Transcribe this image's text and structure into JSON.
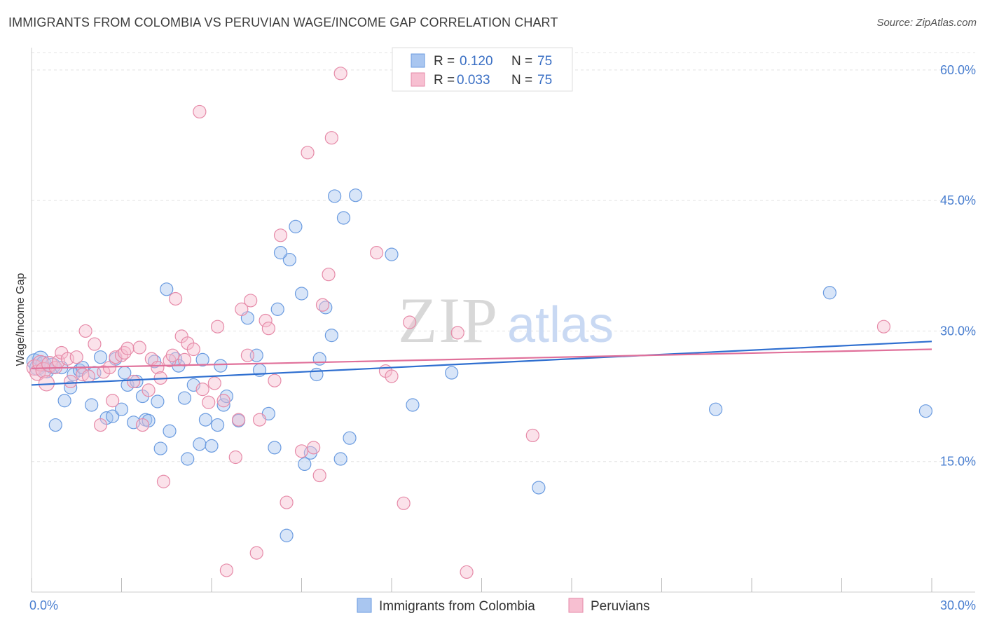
{
  "chart_data": {
    "type": "scatter",
    "title": "IMMIGRANTS FROM COLOMBIA VS PERUVIAN WAGE/INCOME GAP CORRELATION CHART",
    "source": "Source: ZipAtlas.com",
    "xlabel": "",
    "ylabel": "Wage/Income Gap",
    "xlim": [
      0,
      30
    ],
    "ylim": [
      0,
      62
    ],
    "x_tick_labels": [
      "0.0%",
      "30.0%"
    ],
    "y_ticks": [
      15,
      30,
      45,
      60
    ],
    "y_tick_labels": [
      "15.0%",
      "30.0%",
      "45.0%",
      "60.0%"
    ],
    "grid": true,
    "watermark": "ZIPatlas",
    "legend_stats": [
      {
        "r_label": "R =",
        "r_value": "0.120",
        "n_label": "N =",
        "n_value": "75"
      },
      {
        "r_label": "R =",
        "r_value": "0.033",
        "n_label": "N =",
        "n_value": "75"
      }
    ],
    "series": [
      {
        "name": "Immigrants from Colombia",
        "color": "#6a9be0",
        "fill": "#a9c6f0",
        "trend": {
          "x": [
            0,
            30
          ],
          "y": [
            23.8,
            28.8
          ]
        },
        "points": [
          [
            0.1,
            26.5
          ],
          [
            0.2,
            25.8
          ],
          [
            0.3,
            26.8
          ],
          [
            0.4,
            26.2
          ],
          [
            0.5,
            25.5
          ],
          [
            0.7,
            26.0
          ],
          [
            0.8,
            19.2
          ],
          [
            1.0,
            25.8
          ],
          [
            1.1,
            22.0
          ],
          [
            1.3,
            23.5
          ],
          [
            1.4,
            25.0
          ],
          [
            1.6,
            25.5
          ],
          [
            1.7,
            25.8
          ],
          [
            2.0,
            21.5
          ],
          [
            2.1,
            25.2
          ],
          [
            2.3,
            27.0
          ],
          [
            2.5,
            20.0
          ],
          [
            2.7,
            20.2
          ],
          [
            2.8,
            26.8
          ],
          [
            3.0,
            21.0
          ],
          [
            3.1,
            25.2
          ],
          [
            3.2,
            23.8
          ],
          [
            3.4,
            19.5
          ],
          [
            3.5,
            24.2
          ],
          [
            3.7,
            22.5
          ],
          [
            3.8,
            19.8
          ],
          [
            3.9,
            19.7
          ],
          [
            4.1,
            26.5
          ],
          [
            4.2,
            21.9
          ],
          [
            4.3,
            16.5
          ],
          [
            4.5,
            34.8
          ],
          [
            4.6,
            18.5
          ],
          [
            4.8,
            26.8
          ],
          [
            4.9,
            26.0
          ],
          [
            5.1,
            22.3
          ],
          [
            5.2,
            15.3
          ],
          [
            5.4,
            23.8
          ],
          [
            5.6,
            17.0
          ],
          [
            5.7,
            26.7
          ],
          [
            5.8,
            19.8
          ],
          [
            6.0,
            16.8
          ],
          [
            6.2,
            19.2
          ],
          [
            6.3,
            26.0
          ],
          [
            6.4,
            21.5
          ],
          [
            6.5,
            22.5
          ],
          [
            6.9,
            19.7
          ],
          [
            7.2,
            31.5
          ],
          [
            7.5,
            27.2
          ],
          [
            7.6,
            25.5
          ],
          [
            7.9,
            20.5
          ],
          [
            8.1,
            16.6
          ],
          [
            8.2,
            32.5
          ],
          [
            8.5,
            6.5
          ],
          [
            8.6,
            38.2
          ],
          [
            8.3,
            39.0
          ],
          [
            8.8,
            42.0
          ],
          [
            9.0,
            34.3
          ],
          [
            9.1,
            14.7
          ],
          [
            9.3,
            16.0
          ],
          [
            9.5,
            25.0
          ],
          [
            9.6,
            26.8
          ],
          [
            9.8,
            32.7
          ],
          [
            10.0,
            29.5
          ],
          [
            10.1,
            45.5
          ],
          [
            10.3,
            15.3
          ],
          [
            10.4,
            43.0
          ],
          [
            10.6,
            17.7
          ],
          [
            10.8,
            45.6
          ],
          [
            12.0,
            38.8
          ],
          [
            12.7,
            21.5
          ],
          [
            14.0,
            25.2
          ],
          [
            16.9,
            12.0
          ],
          [
            22.8,
            21.0
          ],
          [
            26.6,
            34.4
          ],
          [
            29.8,
            20.8
          ]
        ]
      },
      {
        "name": "Peruvians",
        "color": "#e68aa8",
        "fill": "#f7bfd1",
        "trend": {
          "x": [
            0,
            30
          ],
          "y": [
            25.7,
            27.9
          ]
        },
        "points": [
          [
            0.1,
            25.8
          ],
          [
            0.2,
            25.2
          ],
          [
            0.3,
            26.3
          ],
          [
            0.4,
            25.5
          ],
          [
            0.5,
            24.0
          ],
          [
            0.6,
            26.2
          ],
          [
            0.8,
            25.8
          ],
          [
            0.9,
            26.5
          ],
          [
            1.0,
            27.5
          ],
          [
            1.2,
            26.8
          ],
          [
            1.3,
            24.2
          ],
          [
            1.5,
            27.0
          ],
          [
            1.7,
            25.0
          ],
          [
            1.8,
            30.0
          ],
          [
            1.9,
            24.8
          ],
          [
            2.1,
            28.5
          ],
          [
            2.3,
            19.2
          ],
          [
            2.4,
            25.3
          ],
          [
            2.6,
            25.8
          ],
          [
            2.7,
            22.0
          ],
          [
            2.8,
            27.0
          ],
          [
            3.0,
            27.2
          ],
          [
            3.1,
            27.5
          ],
          [
            3.2,
            28.0
          ],
          [
            3.4,
            24.2
          ],
          [
            3.6,
            28.1
          ],
          [
            3.7,
            19.2
          ],
          [
            3.9,
            23.2
          ],
          [
            4.0,
            26.8
          ],
          [
            4.2,
            25.8
          ],
          [
            4.3,
            24.6
          ],
          [
            4.4,
            12.7
          ],
          [
            4.6,
            26.6
          ],
          [
            4.7,
            27.2
          ],
          [
            4.8,
            33.7
          ],
          [
            5.0,
            29.4
          ],
          [
            5.1,
            26.7
          ],
          [
            5.2,
            28.6
          ],
          [
            5.4,
            27.9
          ],
          [
            5.6,
            55.2
          ],
          [
            5.7,
            23.3
          ],
          [
            5.9,
            21.8
          ],
          [
            6.1,
            24.0
          ],
          [
            6.2,
            30.5
          ],
          [
            6.4,
            22.0
          ],
          [
            6.5,
            2.5
          ],
          [
            6.8,
            15.5
          ],
          [
            6.9,
            19.8
          ],
          [
            7.0,
            32.5
          ],
          [
            7.2,
            27.2
          ],
          [
            7.3,
            33.5
          ],
          [
            7.5,
            4.5
          ],
          [
            7.6,
            19.8
          ],
          [
            7.8,
            31.2
          ],
          [
            7.9,
            30.3
          ],
          [
            8.1,
            24.3
          ],
          [
            8.3,
            41.0
          ],
          [
            8.5,
            10.3
          ],
          [
            9.0,
            16.2
          ],
          [
            9.2,
            50.5
          ],
          [
            9.4,
            16.6
          ],
          [
            9.6,
            13.4
          ],
          [
            9.7,
            33.0
          ],
          [
            9.9,
            36.5
          ],
          [
            10.0,
            52.2
          ],
          [
            10.3,
            59.6
          ],
          [
            11.5,
            39.0
          ],
          [
            11.8,
            25.4
          ],
          [
            12.0,
            24.8
          ],
          [
            12.4,
            10.2
          ],
          [
            12.6,
            31.0
          ],
          [
            14.5,
            2.3
          ],
          [
            14.2,
            29.8
          ],
          [
            16.7,
            18.0
          ],
          [
            28.4,
            30.5
          ]
        ]
      }
    ]
  },
  "bottom_legend": [
    {
      "label": "Immigrants from Colombia"
    },
    {
      "label": "Peruvians"
    }
  ]
}
